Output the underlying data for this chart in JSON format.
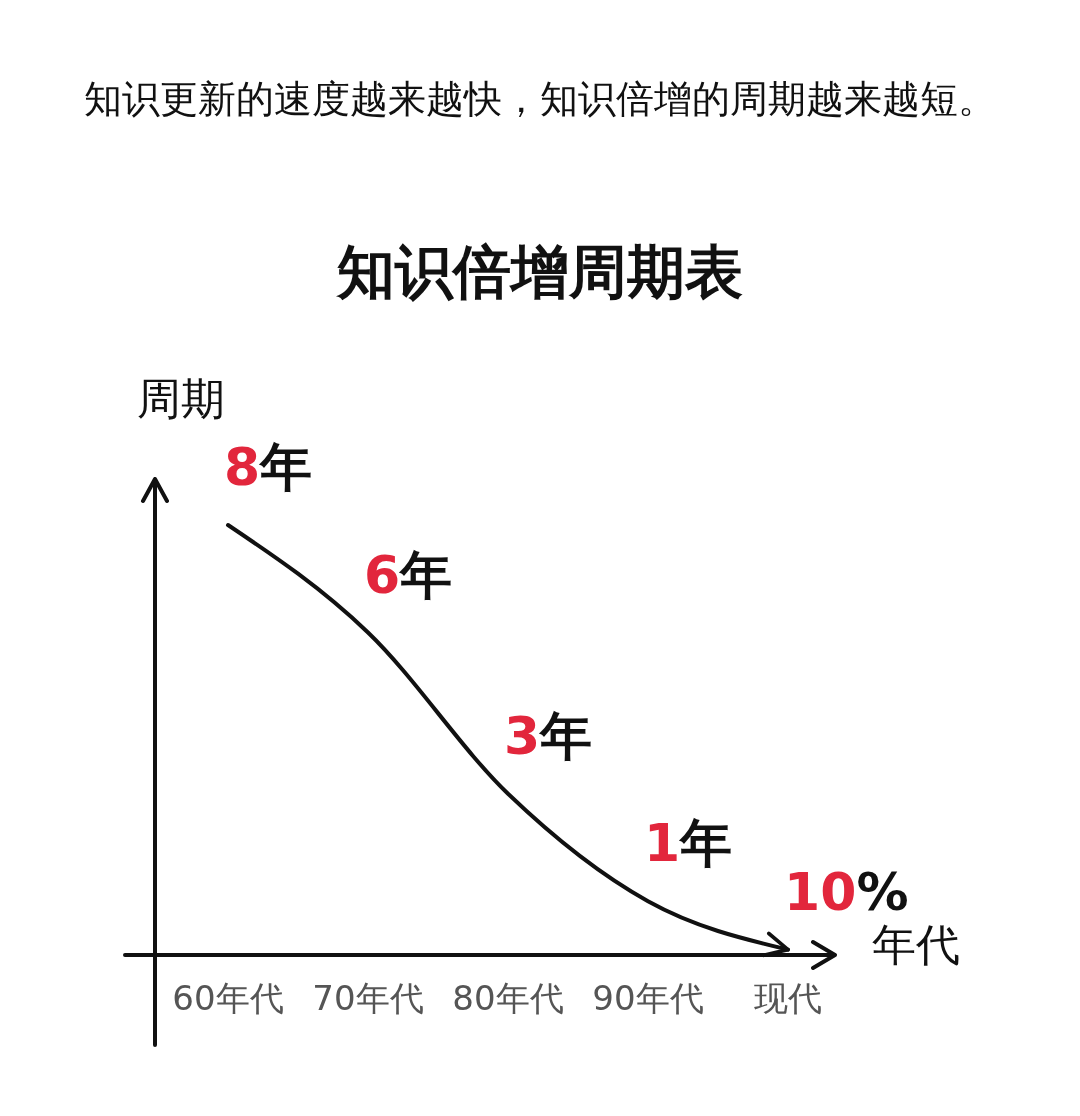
{
  "chart_data": {
    "type": "line",
    "subtitle": "知识更新的速度越来越快，知识倍增的周期越来越短。",
    "title": "知识倍增周期表",
    "ylabel": "周期",
    "xlabel": "年代",
    "categories": [
      "60年代",
      "70年代",
      "80年代",
      "90年代",
      "现代"
    ],
    "tick_labels": "x",
    "series": [
      {
        "color": "#111111",
        "values": [
          8,
          6,
          3,
          1,
          0.1
        ],
        "value_labels": [
          "8年",
          "6年",
          "3年",
          "1年",
          "10%"
        ]
      }
    ]
  }
}
